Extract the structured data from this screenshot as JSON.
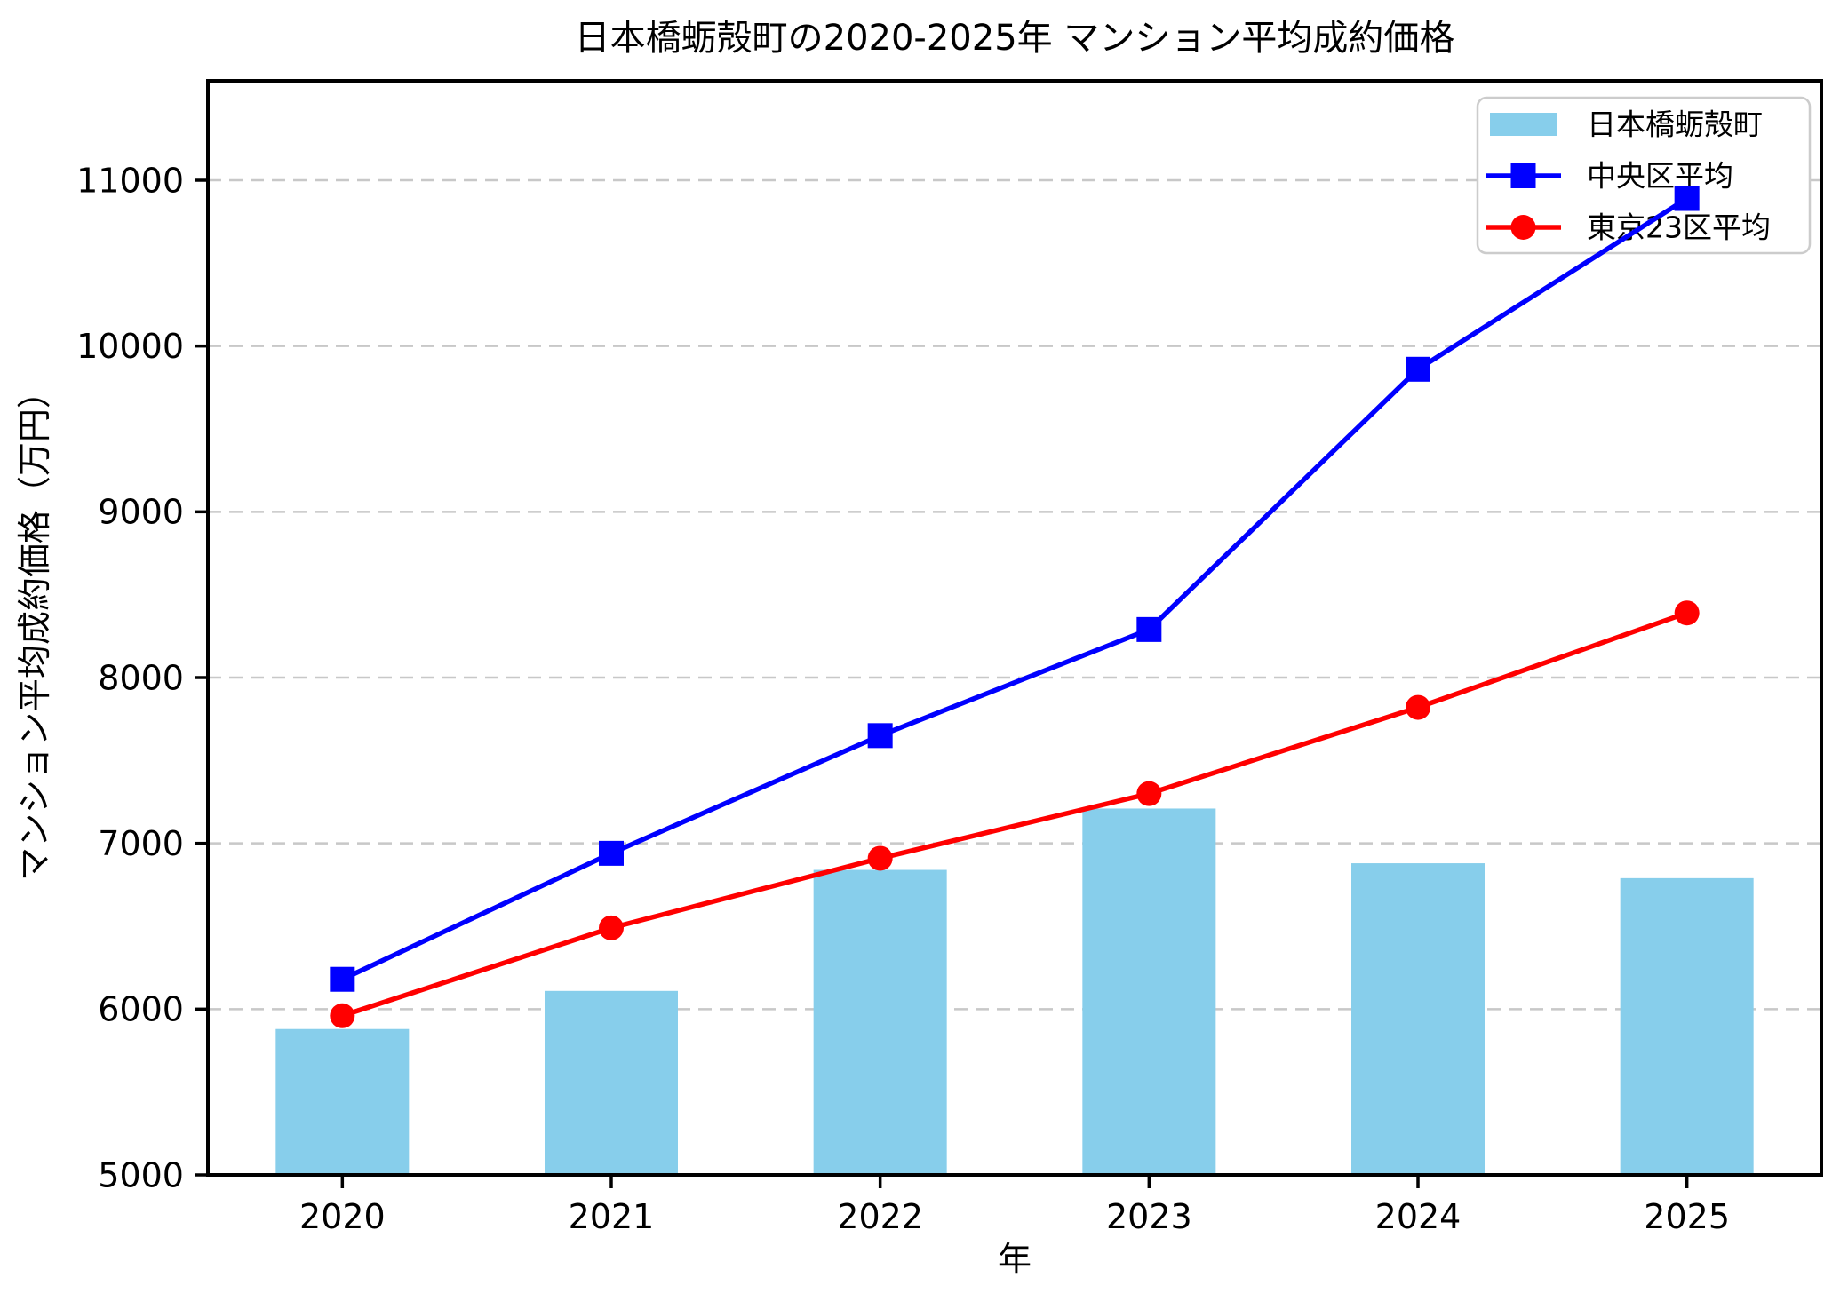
{
  "chart_data": {
    "type": "bar+line",
    "title": "日本橋蛎殻町の2020-2025年 マンション平均成約価格",
    "xlabel": "年",
    "ylabel": "マンション平均成約価格（万円）",
    "categories": [
      "2020",
      "2021",
      "2022",
      "2023",
      "2024",
      "2025"
    ],
    "bar_series": {
      "name": "日本橋蛎殻町",
      "color": "#87CEEB",
      "values": [
        5880,
        6110,
        6840,
        7210,
        6880,
        6790
      ]
    },
    "line_series": [
      {
        "name": "中央区平均",
        "color": "#0000FF",
        "marker": "square",
        "values": [
          6180,
          6940,
          7650,
          8290,
          9860,
          10890
        ]
      },
      {
        "name": "東京23区平均",
        "color": "#FF0000",
        "marker": "circle",
        "values": [
          5960,
          6490,
          6910,
          7300,
          7820,
          8390
        ]
      }
    ],
    "ylim": [
      5000,
      11600
    ],
    "yticks": [
      5000,
      6000,
      7000,
      8000,
      9000,
      10000,
      11000
    ],
    "grid": {
      "axis": "y",
      "style": "dashed",
      "color": "#c8c8c8"
    },
    "legend": {
      "position": "upper right",
      "entries": [
        "日本橋蛎殻町",
        "中央区平均",
        "東京23区平均"
      ]
    },
    "axis_color": "#000000",
    "background": "#ffffff"
  }
}
